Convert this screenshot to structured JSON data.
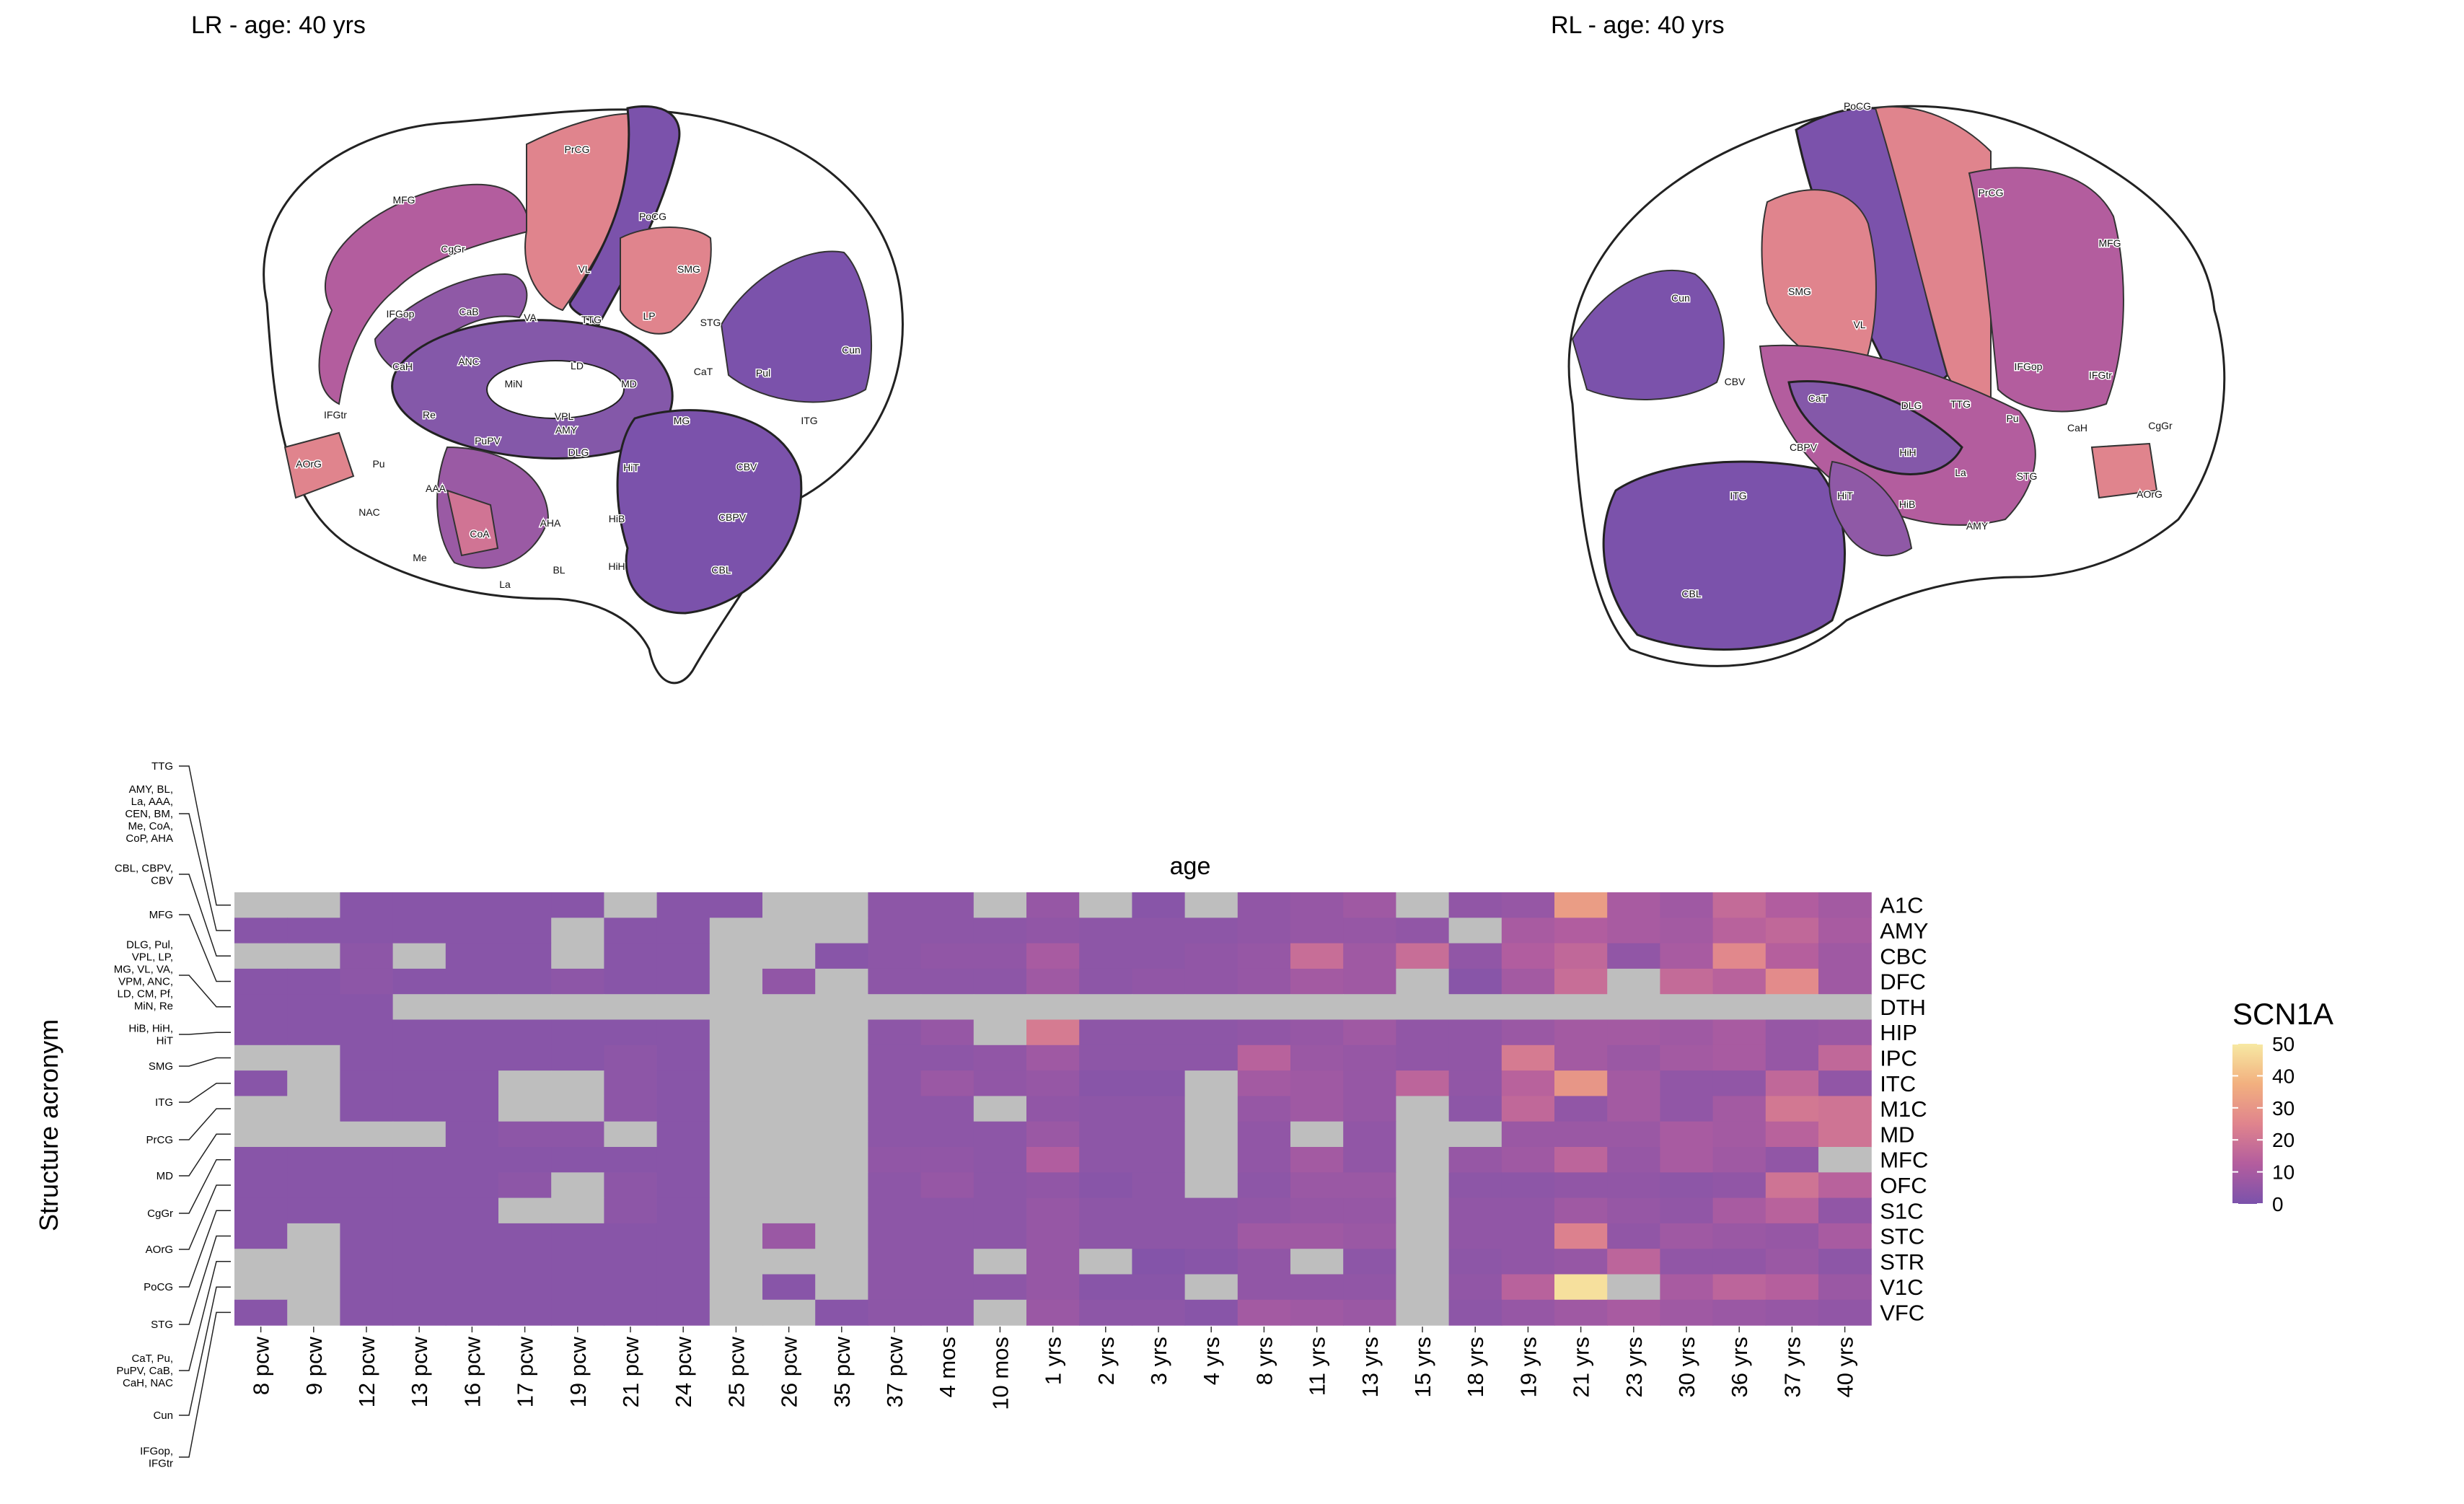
{
  "panels": {
    "left_title": "LR - age: 40 yrs",
    "right_title": "RL - age: 40 yrs"
  },
  "brain_left_labels": [
    "PrCG",
    "MFG",
    "CgGr",
    "PoCG",
    "SMG",
    "VL",
    "IFGop",
    "CaB",
    "VA",
    "TTG",
    "LP",
    "STG",
    "CaH",
    "ANC",
    "LD",
    "CaT",
    "Pul",
    "MiN",
    "MD",
    "IFGtr",
    "Re",
    "VPL",
    "MG",
    "ITG",
    "PuPV",
    "AMY",
    "DLG",
    "CBV",
    "HiT",
    "AOrG",
    "Pu",
    "AAA",
    "HiB",
    "CBPV",
    "NAC",
    "CoA",
    "AHA",
    "Me",
    "BL",
    "HiH",
    "CBL",
    "Cun",
    "La"
  ],
  "brain_right_labels": [
    "PoCG",
    "PrCG",
    "MFG",
    "Cun",
    "SMG",
    "VL",
    "CBV",
    "CaT",
    "DLG",
    "TTG",
    "IFGop",
    "IFGtr",
    "CBPV",
    "HiH",
    "Pu",
    "CaH",
    "CgGr",
    "La",
    "STG",
    "ITG",
    "HiT",
    "HiB",
    "AMY",
    "AOrG",
    "CBL"
  ],
  "legend_groups": [
    "TTG",
    "AMY, BL,\nLa, AAA,\nCEN, BM,\nMe, CoA,\nCoP, AHA",
    "CBL, CBPV,\nCBV",
    "MFG",
    "DLG, Pul,\nVPL, LP,\nMG, VL, VA,\nVPM, ANC,\nLD, CM, Pf,\nMiN, Re",
    "HiB, HiH,\nHiT",
    "SMG",
    "ITG",
    "PrCG",
    "MD",
    "CgGr",
    "AOrG",
    "PoCG",
    "STG",
    "CaT, Pu,\nPuPV, CaB,\nCaH, NAC",
    "Cun",
    "IFGop,\nIFGtr"
  ],
  "colors": {
    "na": "#bebebe",
    "scale": [
      "#7b52ab",
      "#b35d9e",
      "#e0848d",
      "#f2b07f",
      "#f7e9a3"
    ]
  },
  "chart_data": {
    "type": "heatmap",
    "title": "age",
    "ylabel": "Structure acronym",
    "legend_title": "SCN1A",
    "legend_ticks": [
      "50",
      "40",
      "30",
      "20",
      "10",
      "0"
    ],
    "color_range": [
      0,
      50
    ],
    "x": [
      "8 pcw",
      "9 pcw",
      "12 pcw",
      "13 pcw",
      "16 pcw",
      "17 pcw",
      "19 pcw",
      "21 pcw",
      "24 pcw",
      "25 pcw",
      "26 pcw",
      "35 pcw",
      "37 pcw",
      "4 mos",
      "10 mos",
      "1 yrs",
      "2 yrs",
      "3 yrs",
      "4 yrs",
      "8 yrs",
      "11 yrs",
      "13 yrs",
      "15 yrs",
      "18 yrs",
      "19 yrs",
      "21 yrs",
      "23 yrs",
      "30 yrs",
      "36 yrs",
      "37 yrs",
      "40 yrs"
    ],
    "y": [
      "A1C",
      "AMY",
      "CBC",
      "DFC",
      "DTH",
      "HIP",
      "IPC",
      "ITC",
      "M1C",
      "MD",
      "MFC",
      "OFC",
      "S1C",
      "STC",
      "STR",
      "V1C",
      "VFC"
    ],
    "values": [
      [
        null,
        null,
        3,
        3,
        3,
        3,
        3,
        null,
        3,
        3,
        null,
        null,
        4,
        4,
        null,
        6,
        null,
        3,
        null,
        5,
        6,
        8,
        null,
        5,
        6,
        32,
        10,
        8,
        17,
        12,
        9
      ],
      [
        3,
        3,
        3,
        3,
        3,
        3,
        null,
        3,
        3,
        null,
        null,
        null,
        4,
        4,
        4,
        5,
        4,
        4,
        4,
        5,
        6,
        6,
        5,
        null,
        10,
        12,
        10,
        9,
        14,
        16,
        10
      ],
      [
        null,
        null,
        4,
        null,
        3,
        3,
        null,
        3,
        3,
        null,
        null,
        3,
        4,
        5,
        5,
        10,
        4,
        4,
        5,
        6,
        18,
        8,
        18,
        5,
        12,
        16,
        5,
        10,
        26,
        13,
        8
      ],
      [
        3,
        3,
        4,
        3,
        3,
        3,
        4,
        3,
        3,
        null,
        5,
        null,
        4,
        4,
        4,
        8,
        4,
        5,
        5,
        6,
        9,
        8,
        null,
        3,
        9,
        18,
        null,
        17,
        14,
        27,
        8
      ],
      [
        3,
        3,
        3,
        null,
        null,
        null,
        null,
        null,
        null,
        null,
        null,
        null,
        null,
        null,
        null,
        null,
        null,
        null,
        null,
        null,
        null,
        null,
        null,
        null,
        null,
        null,
        null,
        null,
        null,
        null,
        null
      ],
      [
        3,
        3,
        3,
        3,
        3,
        3,
        3,
        3,
        3,
        null,
        null,
        null,
        4,
        6,
        null,
        22,
        4,
        4,
        4,
        5,
        6,
        8,
        5,
        5,
        7,
        9,
        9,
        8,
        10,
        6,
        7
      ],
      [
        null,
        null,
        3,
        3,
        3,
        3,
        3,
        4,
        3,
        null,
        null,
        null,
        4,
        4,
        5,
        8,
        4,
        4,
        4,
        14,
        7,
        6,
        5,
        5,
        22,
        9,
        7,
        9,
        10,
        6,
        16
      ],
      [
        3,
        null,
        3,
        3,
        3,
        null,
        null,
        4,
        3,
        null,
        null,
        null,
        4,
        7,
        5,
        6,
        3,
        3,
        null,
        9,
        8,
        6,
        15,
        5,
        14,
        30,
        9,
        5,
        5,
        16,
        5
      ],
      [
        null,
        null,
        3,
        3,
        3,
        null,
        null,
        4,
        3,
        null,
        null,
        null,
        4,
        4,
        null,
        5,
        4,
        4,
        null,
        6,
        8,
        6,
        null,
        4,
        16,
        5,
        9,
        5,
        9,
        21,
        20
      ],
      [
        null,
        null,
        null,
        null,
        3,
        4,
        4,
        null,
        3,
        null,
        null,
        null,
        4,
        4,
        4,
        7,
        4,
        4,
        null,
        5,
        null,
        5,
        null,
        null,
        7,
        7,
        7,
        10,
        9,
        14,
        20
      ],
      [
        3,
        3,
        3,
        3,
        3,
        3,
        3,
        3,
        3,
        null,
        null,
        null,
        5,
        5,
        4,
        12,
        4,
        4,
        null,
        5,
        9,
        5,
        null,
        6,
        8,
        15,
        6,
        10,
        8,
        5,
        null
      ],
      [
        3,
        3,
        3,
        3,
        3,
        4,
        null,
        4,
        3,
        null,
        null,
        null,
        4,
        6,
        4,
        5,
        3,
        4,
        null,
        4,
        7,
        7,
        null,
        4,
        4,
        5,
        5,
        4,
        5,
        20,
        14
      ],
      [
        3,
        3,
        3,
        3,
        3,
        null,
        null,
        4,
        3,
        null,
        null,
        null,
        4,
        4,
        4,
        6,
        4,
        4,
        4,
        5,
        6,
        6,
        null,
        5,
        5,
        8,
        6,
        5,
        10,
        14,
        5
      ],
      [
        3,
        null,
        3,
        3,
        3,
        3,
        3,
        3,
        3,
        null,
        7,
        null,
        4,
        4,
        4,
        6,
        4,
        4,
        4,
        8,
        8,
        7,
        null,
        5,
        5,
        24,
        5,
        8,
        7,
        6,
        10
      ],
      [
        null,
        null,
        3,
        3,
        3,
        3,
        3,
        3,
        3,
        null,
        null,
        null,
        4,
        4,
        null,
        6,
        null,
        2,
        3,
        5,
        null,
        4,
        null,
        4,
        5,
        6,
        15,
        5,
        5,
        7,
        4
      ],
      [
        null,
        null,
        3,
        3,
        3,
        3,
        3,
        3,
        3,
        null,
        3,
        null,
        4,
        4,
        4,
        6,
        3,
        3,
        null,
        5,
        5,
        5,
        null,
        5,
        14,
        48,
        null,
        10,
        15,
        13,
        7
      ],
      [
        3,
        null,
        3,
        3,
        3,
        3,
        3,
        3,
        3,
        null,
        null,
        3,
        4,
        4,
        null,
        7,
        4,
        4,
        3,
        9,
        8,
        7,
        null,
        4,
        6,
        8,
        10,
        8,
        7,
        6,
        5
      ]
    ]
  }
}
